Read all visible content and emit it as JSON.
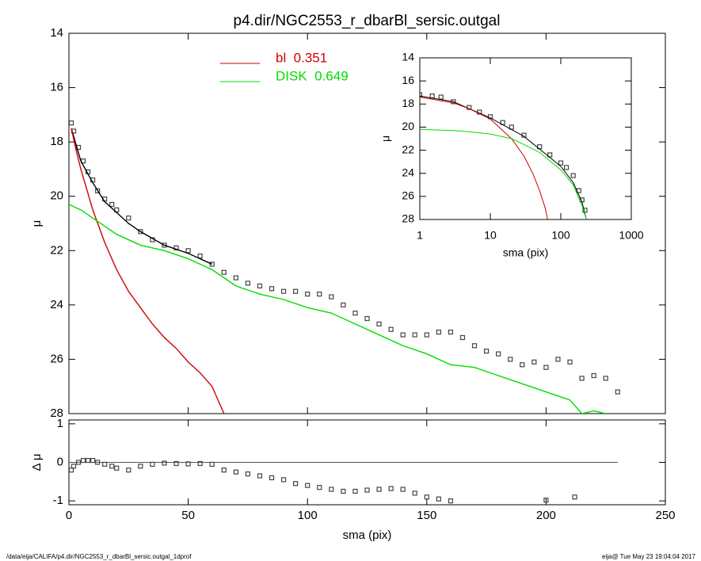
{
  "chart_data": [
    {
      "type": "line",
      "title": "p4.dir/NGC2553_r_dbarBl_sersic.outgal",
      "ylabel": "μ",
      "xlim": [
        0,
        250
      ],
      "xticks": [
        0,
        50,
        100,
        150,
        200,
        250
      ],
      "ylim": [
        28,
        14
      ],
      "yticks": [
        14,
        16,
        18,
        20,
        22,
        24,
        26,
        28
      ],
      "series": [
        {
          "color": "#444444",
          "marker": "square",
          "x": [
            1,
            2,
            4,
            6,
            8,
            10,
            12,
            15,
            18,
            20,
            25,
            30,
            35,
            40,
            45,
            50,
            55,
            60,
            65,
            70,
            75,
            80,
            85,
            90,
            95,
            100,
            105,
            110,
            115,
            120,
            125,
            130,
            135,
            140,
            145,
            150,
            155,
            160,
            165,
            170,
            175,
            180,
            185,
            190,
            195,
            200,
            205,
            210,
            215,
            220,
            225,
            230
          ],
          "values": [
            17.3,
            17.6,
            18.2,
            18.7,
            19.1,
            19.4,
            19.8,
            20.1,
            20.3,
            20.5,
            20.8,
            21.3,
            21.6,
            21.8,
            21.9,
            22.0,
            22.2,
            22.5,
            22.8,
            23.0,
            23.2,
            23.3,
            23.4,
            23.5,
            23.5,
            23.6,
            23.6,
            23.7,
            24.0,
            24.3,
            24.5,
            24.7,
            24.9,
            25.1,
            25.1,
            25.1,
            25.0,
            25.0,
            25.2,
            25.5,
            25.7,
            25.8,
            26.0,
            26.2,
            26.1,
            26.3,
            26.0,
            26.1,
            26.7,
            26.6,
            26.7,
            27.2
          ]
        },
        {
          "color": "#000000",
          "x": [
            1,
            5,
            10,
            15,
            20,
            25,
            30,
            40,
            50,
            60
          ],
          "values": [
            17.5,
            18.7,
            19.5,
            20.2,
            20.6,
            21.0,
            21.3,
            21.8,
            22.1,
            22.5
          ]
        },
        {
          "name": "bl  0.351",
          "color": "#d00000",
          "x": [
            1,
            3,
            5,
            10,
            15,
            20,
            25,
            30,
            35,
            40,
            45,
            50,
            55,
            60,
            65
          ],
          "values": [
            17.5,
            18.3,
            19.0,
            20.5,
            21.7,
            22.7,
            23.5,
            24.1,
            24.7,
            25.2,
            25.6,
            26.1,
            26.5,
            27.0,
            28.0
          ]
        },
        {
          "name": "DISK  0.649",
          "color": "#00dd00",
          "x": [
            0,
            5,
            10,
            15,
            20,
            25,
            30,
            40,
            50,
            60,
            70,
            80,
            90,
            100,
            110,
            120,
            130,
            140,
            150,
            160,
            170,
            180,
            190,
            200,
            210,
            215,
            220,
            225
          ],
          "values": [
            20.3,
            20.5,
            20.8,
            21.1,
            21.4,
            21.6,
            21.8,
            22.0,
            22.3,
            22.7,
            23.3,
            23.6,
            23.8,
            24.1,
            24.3,
            24.7,
            25.1,
            25.5,
            25.8,
            26.2,
            26.3,
            26.6,
            26.9,
            27.2,
            27.5,
            28.0,
            27.9,
            28.0
          ]
        }
      ]
    },
    {
      "type": "line",
      "xlabel": "sma (pix)",
      "ylabel": "Δ μ",
      "xlim": [
        0,
        250
      ],
      "xticks": [
        0,
        50,
        100,
        150,
        200,
        250
      ],
      "ylim": [
        -1.1,
        1.1
      ],
      "yticks": [
        -1,
        0,
        1
      ],
      "hline": {
        "y": 0,
        "xmax": 230
      },
      "series": [
        {
          "color": "#444444",
          "marker": "square",
          "x": [
            1,
            2,
            4,
            6,
            8,
            10,
            12,
            15,
            18,
            20,
            25,
            30,
            35,
            40,
            45,
            50,
            55,
            60,
            65,
            70,
            75,
            80,
            85,
            90,
            95,
            100,
            105,
            110,
            115,
            120,
            125,
            130,
            135,
            140,
            145,
            150,
            155,
            160,
            200,
            212
          ],
          "values": [
            -0.2,
            -0.1,
            0.0,
            0.05,
            0.05,
            0.05,
            0.0,
            -0.05,
            -0.1,
            -0.15,
            -0.2,
            -0.1,
            -0.05,
            -0.02,
            -0.03,
            -0.04,
            -0.03,
            -0.05,
            -0.2,
            -0.25,
            -0.3,
            -0.35,
            -0.4,
            -0.45,
            -0.55,
            -0.6,
            -0.65,
            -0.7,
            -0.75,
            -0.75,
            -0.72,
            -0.7,
            -0.68,
            -0.7,
            -0.8,
            -0.9,
            -0.95,
            -1.0,
            -0.98,
            -0.9
          ]
        }
      ]
    },
    {
      "type": "line",
      "xlabel": "sma (pix)",
      "ylabel": "μ",
      "xlog": true,
      "xlim": [
        1,
        1000
      ],
      "xticks": [
        1,
        10,
        100,
        1000
      ],
      "ylim": [
        28,
        14
      ],
      "yticks": [
        14,
        16,
        18,
        20,
        22,
        24,
        26,
        28
      ],
      "series": [
        {
          "color": "#444444",
          "marker": "square",
          "x": [
            1,
            1.5,
            2,
            3,
            5,
            7,
            10,
            15,
            20,
            30,
            50,
            70,
            100,
            120,
            150,
            180,
            200,
            220
          ],
          "values": [
            17.2,
            17.3,
            17.4,
            17.8,
            18.3,
            18.7,
            19.1,
            19.6,
            20.0,
            20.7,
            21.7,
            22.4,
            23.1,
            23.5,
            24.2,
            25.5,
            26.3,
            27.2
          ]
        },
        {
          "color": "#000000",
          "x": [
            1,
            3,
            10,
            30,
            100,
            150,
            200,
            230
          ],
          "values": [
            17.3,
            17.8,
            19.2,
            20.8,
            23.4,
            24.8,
            26.5,
            28.0
          ]
        },
        {
          "color": "#d00000",
          "x": [
            1,
            3,
            5,
            10,
            20,
            30,
            40,
            50,
            60,
            65
          ],
          "values": [
            17.4,
            17.9,
            18.4,
            19.3,
            21.0,
            22.5,
            24.0,
            25.5,
            27.0,
            28.0
          ]
        },
        {
          "color": "#00dd00",
          "x": [
            1,
            3,
            5,
            10,
            20,
            30,
            50,
            100,
            150,
            200,
            230
          ],
          "values": [
            20.2,
            20.3,
            20.4,
            20.6,
            21.0,
            21.5,
            22.2,
            23.7,
            25.0,
            26.8,
            28.0
          ]
        }
      ]
    }
  ],
  "footer": {
    "path": "/data/eija/CALIFA/p4.dir/NGC2553_r_dbarBl_sersic.outgal_1dprof",
    "stamp": "eija@  Tue May 23 19:04:04 2017"
  }
}
